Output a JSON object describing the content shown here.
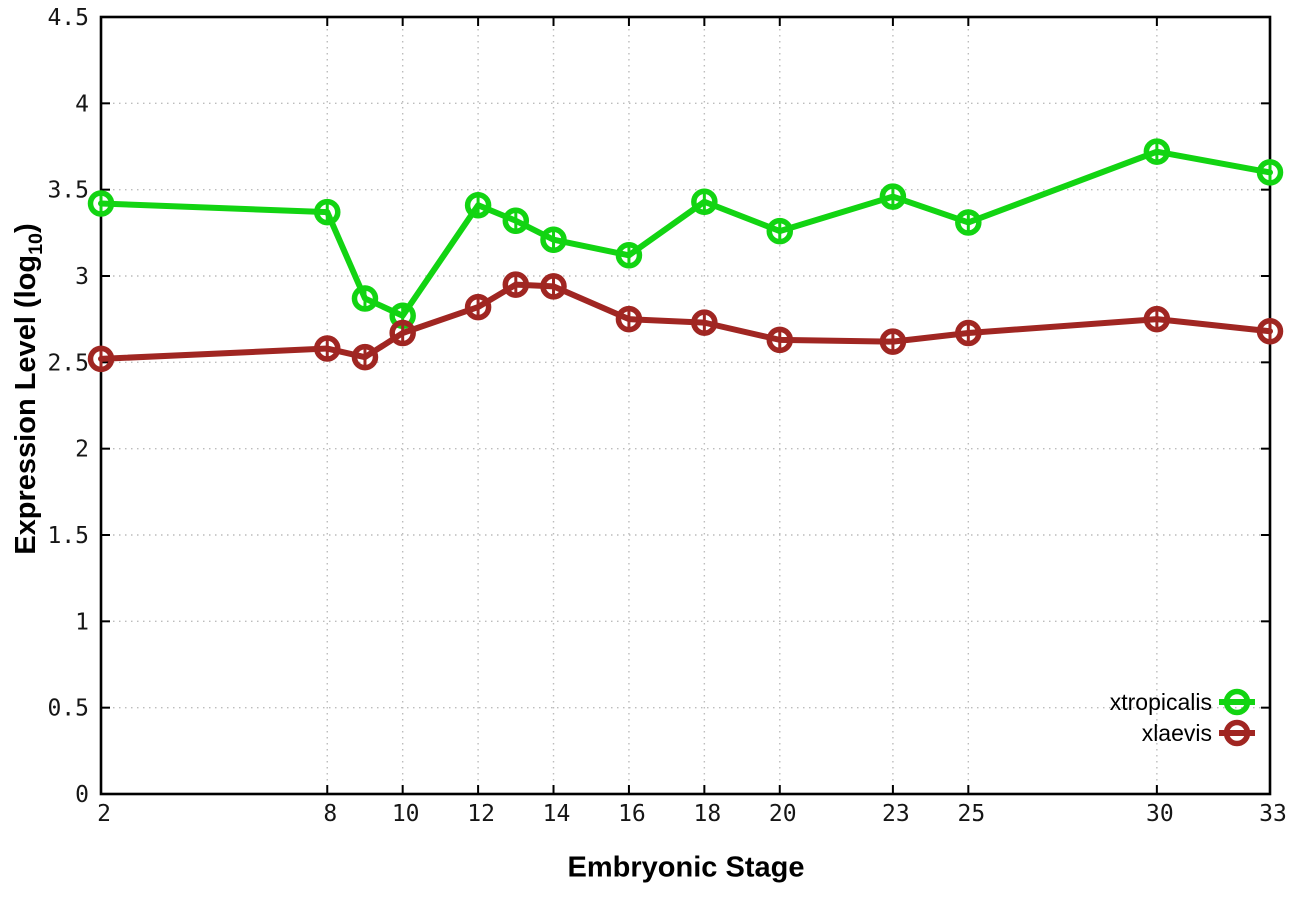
{
  "chart_data": {
    "type": "line",
    "title": "",
    "xlabel": "Embryonic Stage",
    "ylabel": "Expression Level (log10)",
    "ylabel_parts": {
      "main": "Expression Level (log",
      "sub": "10",
      "close": ")"
    },
    "x": [
      2,
      8,
      9,
      10,
      12,
      13,
      14,
      16,
      18,
      20,
      23,
      25,
      30,
      33
    ],
    "xlim": [
      2,
      33
    ],
    "ylim": [
      0,
      4.5
    ],
    "xticks": {
      "values": [
        2,
        8,
        10,
        12,
        14,
        16,
        18,
        20,
        23,
        25,
        30,
        33
      ],
      "labels": [
        "2",
        "8",
        "10",
        "12",
        "14",
        "16",
        "18",
        "20",
        "23",
        "25",
        "30",
        "33"
      ]
    },
    "yticks": {
      "values": [
        0,
        0.5,
        1,
        1.5,
        2,
        2.5,
        3,
        3.5,
        4,
        4.5
      ],
      "labels": [
        "0",
        "0.5",
        "1",
        "1.5",
        "2",
        "2.5",
        "3",
        "3.5",
        "4",
        "4.5"
      ]
    },
    "grid": true,
    "error_bars": true,
    "legend": {
      "position": "bottom-right",
      "entries": [
        "xtropicalis",
        "xlaevis"
      ]
    },
    "series": [
      {
        "name": "xtropicalis",
        "color": "#12d412",
        "marker": "open-circle",
        "values": [
          3.42,
          3.37,
          2.87,
          2.77,
          3.41,
          3.32,
          3.21,
          3.12,
          3.43,
          3.26,
          3.46,
          3.31,
          3.72,
          3.6
        ]
      },
      {
        "name": "xlaevis",
        "color": "#a02622",
        "marker": "open-circle",
        "values": [
          2.52,
          2.58,
          2.53,
          2.67,
          2.82,
          2.95,
          2.94,
          2.75,
          2.73,
          2.63,
          2.62,
          2.67,
          2.75,
          2.68
        ]
      }
    ]
  },
  "style": {
    "background": "#ffffff",
    "axis_color": "#000000",
    "grid_color": "#bcbcbc",
    "tick_text_color": "#161616"
  }
}
